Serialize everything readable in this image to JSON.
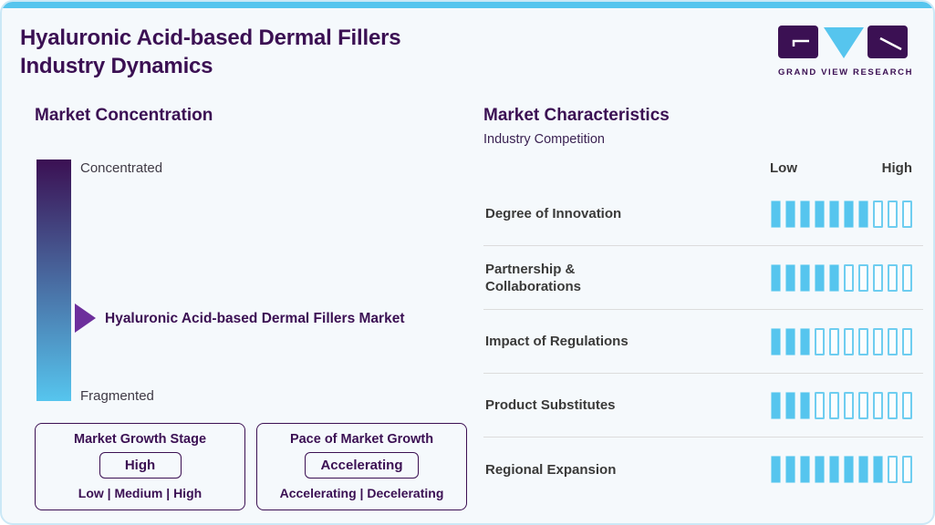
{
  "header": {
    "title_line1": "Hyaluronic Acid-based Dermal Fillers",
    "title_line2": "Industry Dynamics",
    "logo_text": "GRAND VIEW RESEARCH"
  },
  "colors": {
    "accent_purple": "#3B1053",
    "arrow_purple": "#6D2F9C",
    "sky_blue": "#56C5EE",
    "bar_outline_blue": "#6ECDF0",
    "label_charcoal": "#3A3A39"
  },
  "market_concentration": {
    "heading": "Market Concentration",
    "top_label": "Concentrated",
    "bottom_label": "Fragmented",
    "marker_label": "Hyaluronic Acid-based Dermal Fillers Market",
    "gradient_top": "#3B1053",
    "gradient_bottom": "#56C5EE"
  },
  "growth_boxes": {
    "stage": {
      "title": "Market Growth Stage",
      "value": "High",
      "options": "Low | Medium | High"
    },
    "pace": {
      "title": "Pace of Market Growth",
      "value": "Accelerating",
      "options": "Accelerating | Decelerating"
    }
  },
  "market_characteristics": {
    "heading": "Market Characteristics",
    "subheading": "Industry Competition",
    "scale_low": "Low",
    "scale_high": "High",
    "bar_total": 10,
    "filled_color": "#56C5EE",
    "outline_color": "#6ECDF0",
    "rows": [
      {
        "label": "Degree of Innovation",
        "filled": 7
      },
      {
        "label": "Partnership & Collaborations",
        "filled": 5
      },
      {
        "label": "Impact of Regulations",
        "filled": 3
      },
      {
        "label": "Product Substitutes",
        "filled": 3
      },
      {
        "label": "Regional Expansion",
        "filled": 8
      }
    ]
  },
  "chart_data": [
    {
      "type": "bar",
      "title": "Market Characteristics — Industry Competition",
      "categories": [
        "Degree of Innovation",
        "Partnership & Collaborations",
        "Impact of Regulations",
        "Product Substitutes",
        "Regional Expansion"
      ],
      "values": [
        7,
        5,
        3,
        3,
        8
      ],
      "value_scale": {
        "min": 0,
        "max": 10,
        "min_label": "Low",
        "max_label": "High"
      },
      "legend_position": "none",
      "grid": false
    },
    {
      "type": "scale",
      "title": "Market Concentration",
      "axis_labels": [
        "Concentrated",
        "Fragmented"
      ],
      "marker_label": "Hyaluronic Acid-based Dermal Fillers Market",
      "marker_position_from_top": 0.65,
      "annotations": [
        "Market Growth Stage: High (Low | Medium | High)",
        "Pace of Market Growth: Accelerating (Accelerating | Decelerating)"
      ]
    }
  ]
}
